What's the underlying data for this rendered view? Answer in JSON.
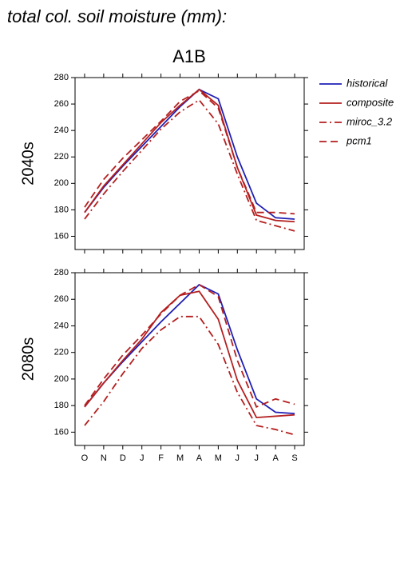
{
  "title": "total col. soil moisture (mm):",
  "chart_data": [
    {
      "type": "line",
      "title": "A1B",
      "ylabel": "2040s",
      "ylim": [
        150,
        280
      ],
      "yticks": [
        160,
        180,
        200,
        220,
        240,
        260,
        280
      ],
      "series": [
        {
          "name": "historical",
          "color": "#1f1fb4",
          "style": "solid",
          "values": [
            178,
            197,
            213,
            228,
            243,
            258,
            271,
            264,
            220,
            185,
            174,
            173
          ]
        },
        {
          "name": "composite",
          "color": "#b41f1f",
          "style": "solid",
          "values": [
            178,
            198,
            214,
            230,
            246,
            259,
            271,
            259,
            212,
            176,
            172,
            171
          ]
        },
        {
          "name": "miroc_3.2",
          "color": "#b41f1f",
          "style": "dashdot",
          "values": [
            173,
            192,
            209,
            225,
            241,
            254,
            263,
            245,
            207,
            172,
            168,
            164
          ]
        },
        {
          "name": "pcm1",
          "color": "#b41f1f",
          "style": "dashed",
          "values": [
            182,
            203,
            219,
            233,
            247,
            262,
            270,
            257,
            212,
            178,
            178,
            177
          ]
        }
      ]
    },
    {
      "type": "line",
      "ylabel": "2080s",
      "categories": [
        "O",
        "N",
        "D",
        "J",
        "F",
        "M",
        "A",
        "M",
        "J",
        "J",
        "A",
        "S"
      ],
      "ylim": [
        150,
        280
      ],
      "yticks": [
        160,
        180,
        200,
        220,
        240,
        260,
        280
      ],
      "series": [
        {
          "color": "#1f1fb4",
          "style": "solid",
          "values": [
            179,
            197,
            213,
            228,
            243,
            257,
            271,
            264,
            222,
            185,
            175,
            174
          ]
        },
        {
          "color": "#b41f1f",
          "style": "solid",
          "values": [
            179,
            197,
            214,
            230,
            250,
            263,
            266,
            245,
            199,
            171,
            172,
            173
          ]
        },
        {
          "color": "#b41f1f",
          "style": "dashdot",
          "values": [
            165,
            183,
            204,
            223,
            237,
            247,
            247,
            226,
            190,
            165,
            162,
            158
          ]
        },
        {
          "color": "#b41f1f",
          "style": "dashed",
          "values": [
            180,
            200,
            218,
            233,
            249,
            263,
            271,
            262,
            214,
            179,
            185,
            181
          ]
        }
      ]
    }
  ]
}
